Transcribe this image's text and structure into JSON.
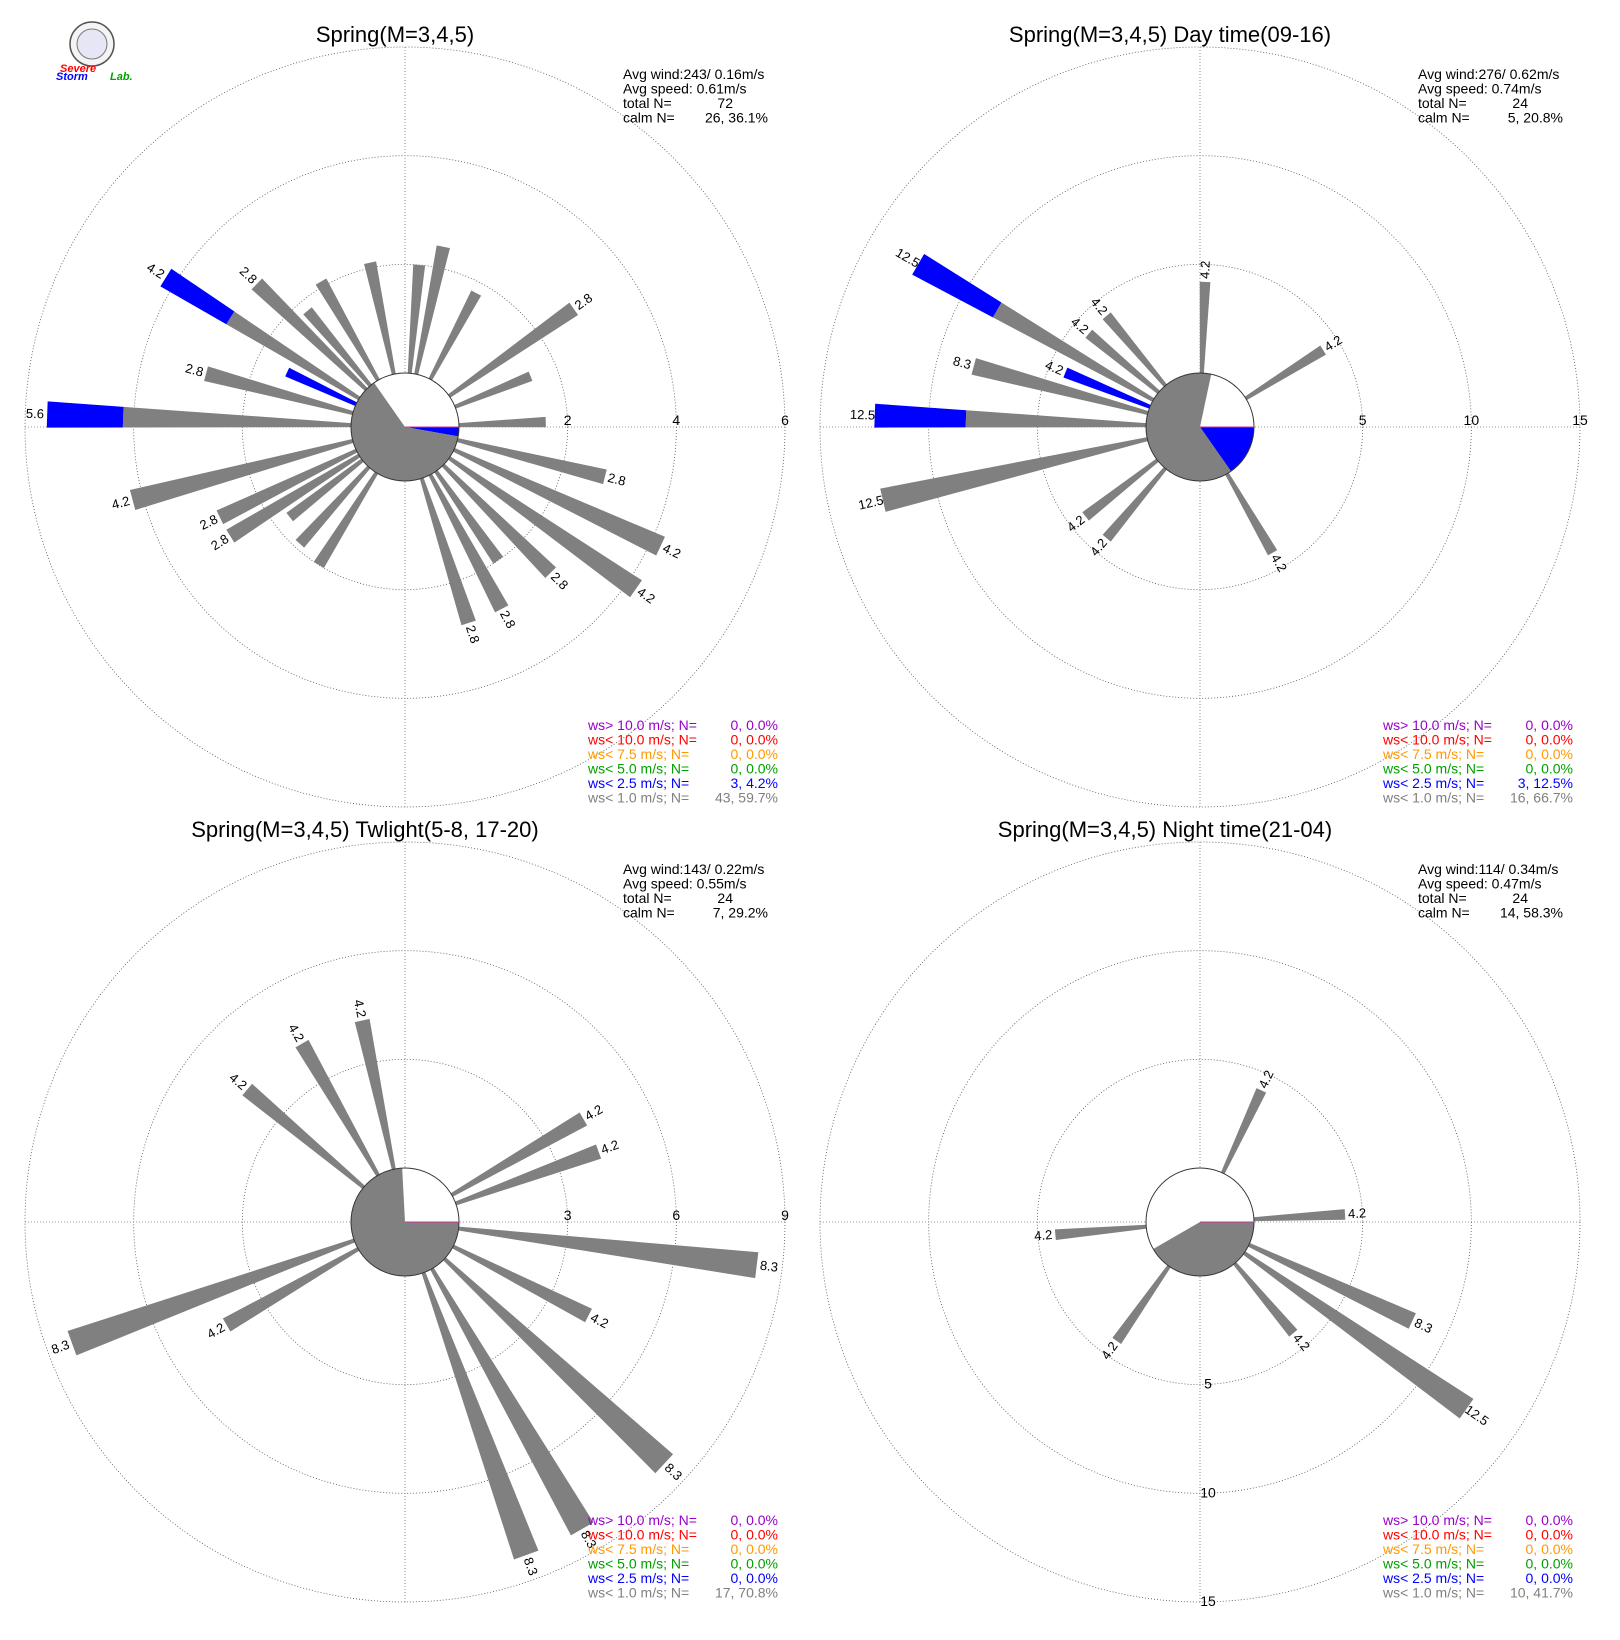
{
  "logo": {
    "text_line1": "Severe",
    "text_line2": "Storm",
    "text_line3": "Lab."
  },
  "colors": {
    "gray": "#808080",
    "blue": "#0000ff",
    "green": "#00a000",
    "orange": "#ff9900",
    "red": "#ff0000",
    "purple": "#9900cc"
  },
  "chart_data": [
    {
      "type": "wind-rose",
      "title": "Spring(M=3,4,5)",
      "avg_wind": "Avg wind:243/ 0.16m/s",
      "avg_speed": "Avg speed: 0.61m/s",
      "total_label": "total N=",
      "total_value": "72",
      "calm_label": "calm N=",
      "calm_value": "26,  36.1%",
      "rmax": 6,
      "ring_step": 2,
      "tick_labels": [
        "2",
        "4",
        "6"
      ],
      "tick_axis": "east",
      "calm_fraction": 0.361,
      "calm_segments": [
        {
          "from_deg": 90,
          "to_deg": 100,
          "color": "blue"
        },
        {
          "from_deg": 100,
          "to_deg": 325,
          "color": "gray"
        }
      ],
      "bars": [
        {
          "dir": 5,
          "value": 2.0,
          "segments": [
            [
              "gray",
              2.0
            ]
          ]
        },
        {
          "dir": 12,
          "value": 2.4,
          "segments": [
            [
              "gray",
              2.4
            ]
          ]
        },
        {
          "dir": 28,
          "value": 1.8,
          "segments": [
            [
              "gray",
              1.8
            ]
          ]
        },
        {
          "dir": 55,
          "value": 2.8,
          "label": "2.8",
          "segments": [
            [
              "gray",
              2.8
            ]
          ]
        },
        {
          "dir": 68,
          "value": 1.5,
          "segments": [
            [
              "gray",
              1.5
            ]
          ]
        },
        {
          "dir": 88,
          "value": 1.6,
          "segments": [
            [
              "gray",
              1.6
            ]
          ]
        },
        {
          "dir": 104,
          "value": 2.8,
          "label": "2.8",
          "segments": [
            [
              "gray",
              2.8
            ]
          ]
        },
        {
          "dir": 115,
          "value": 4.2,
          "label": "4.2",
          "segments": [
            [
              "gray",
              4.2
            ]
          ]
        },
        {
          "dir": 125,
          "value": 4.2,
          "label": "4.2",
          "segments": [
            [
              "gray",
              4.2
            ]
          ]
        },
        {
          "dir": 135,
          "value": 2.8,
          "label": "2.8",
          "segments": [
            [
              "gray",
              2.8
            ]
          ]
        },
        {
          "dir": 145,
          "value": 2.0,
          "segments": [
            [
              "gray",
              2.0
            ]
          ]
        },
        {
          "dir": 152,
          "value": 2.8,
          "label": "2.8",
          "segments": [
            [
              "gray",
              2.8
            ]
          ]
        },
        {
          "dir": 162,
          "value": 2.8,
          "label": "2.8",
          "segments": [
            [
              "gray",
              2.8
            ]
          ]
        },
        {
          "dir": 212,
          "value": 2.0,
          "segments": [
            [
              "gray",
              2.0
            ]
          ]
        },
        {
          "dir": 222,
          "value": 1.9,
          "segments": [
            [
              "gray",
              1.9
            ]
          ]
        },
        {
          "dir": 232,
          "value": 1.7,
          "segments": [
            [
              "gray",
              1.7
            ]
          ]
        },
        {
          "dir": 238,
          "value": 2.8,
          "label": "2.8",
          "segments": [
            [
              "gray",
              2.8
            ]
          ]
        },
        {
          "dir": 244,
          "value": 2.8,
          "label": "2.8",
          "segments": [
            [
              "gray",
              2.8
            ]
          ]
        },
        {
          "dir": 255,
          "value": 4.2,
          "label": "4.2",
          "segments": [
            [
              "gray",
              4.2
            ]
          ]
        },
        {
          "dir": 272,
          "value": 5.6,
          "label": "5.6",
          "segments": [
            [
              "gray",
              4.2
            ],
            [
              "blue",
              1.4
            ]
          ]
        },
        {
          "dir": 285,
          "value": 2.8,
          "label": "2.8",
          "segments": [
            [
              "gray",
              2.8
            ]
          ]
        },
        {
          "dir": 295,
          "value": 1.4,
          "segments": [
            [
              "blue",
              1.4
            ]
          ]
        },
        {
          "dir": 302,
          "value": 4.2,
          "label": "4.2",
          "segments": [
            [
              "gray",
              2.8
            ],
            [
              "blue",
              1.4
            ]
          ]
        },
        {
          "dir": 314,
          "value": 2.8,
          "label": "2.8",
          "segments": [
            [
              "gray",
              2.8
            ]
          ]
        },
        {
          "dir": 320,
          "value": 1.8,
          "segments": [
            [
              "gray",
              1.8
            ]
          ]
        },
        {
          "dir": 330,
          "value": 2.1,
          "segments": [
            [
              "gray",
              2.1
            ]
          ]
        },
        {
          "dir": 348,
          "value": 2.1,
          "segments": [
            [
              "gray",
              2.1
            ]
          ]
        }
      ],
      "legend": [
        {
          "prefix": "ws> 10.0 m/s; N=",
          "value": "0,  0.0%",
          "color": "purple"
        },
        {
          "prefix": "ws< 10.0 m/s; N=",
          "value": "0,  0.0%",
          "color": "red"
        },
        {
          "prefix": "ws<  7.5 m/s; N=",
          "value": "0,  0.0%",
          "color": "orange"
        },
        {
          "prefix": "ws<  5.0 m/s; N=",
          "value": "0,  0.0%",
          "color": "green"
        },
        {
          "prefix": "ws<  2.5 m/s; N=",
          "value": "3,  4.2%",
          "color": "blue"
        },
        {
          "prefix": "ws<  1.0 m/s; N=",
          "value": "43, 59.7%",
          "color": "gray"
        }
      ]
    },
    {
      "type": "wind-rose",
      "title": "Spring(M=3,4,5) Day time(09-16)",
      "avg_wind": "Avg wind:276/ 0.62m/s",
      "avg_speed": "Avg speed: 0.74m/s",
      "total_label": "total N=",
      "total_value": "24",
      "calm_label": "calm N=",
      "calm_value": "5,  20.8%",
      "rmax": 15,
      "ring_step": 5,
      "tick_labels": [
        "5",
        "10",
        "15"
      ],
      "tick_axis": "east",
      "calm_fraction": 0.208,
      "calm_segments": [
        {
          "from_deg": 90,
          "to_deg": 145,
          "color": "blue"
        },
        {
          "from_deg": 145,
          "to_deg": 372,
          "color": "gray"
        }
      ],
      "bars": [
        {
          "dir": 2,
          "value": 4.2,
          "label": "4.2",
          "segments": [
            [
              "gray",
              4.2
            ]
          ]
        },
        {
          "dir": 58,
          "value": 4.2,
          "label": "4.2",
          "segments": [
            [
              "gray",
              4.2
            ]
          ]
        },
        {
          "dir": 150,
          "value": 4.2,
          "label": "4.2",
          "segments": [
            [
              "gray",
              4.2
            ]
          ]
        },
        {
          "dir": 220,
          "value": 4.2,
          "label": "4.2",
          "segments": [
            [
              "gray",
              4.2
            ]
          ]
        },
        {
          "dir": 232,
          "value": 4.2,
          "label": "4.2",
          "segments": [
            [
              "gray",
              4.2
            ]
          ]
        },
        {
          "dir": 257,
          "value": 12.5,
          "label": "12.5",
          "segments": [
            [
              "gray",
              12.5
            ]
          ]
        },
        {
          "dir": 272,
          "value": 12.5,
          "label": "12.5",
          "segments": [
            [
              "gray",
              8.3
            ],
            [
              "blue",
              4.2
            ]
          ]
        },
        {
          "dir": 285,
          "value": 8.3,
          "label": "8.3",
          "segments": [
            [
              "gray",
              8.3
            ]
          ]
        },
        {
          "dir": 292,
          "value": 4.2,
          "label": "4.2",
          "segments": [
            [
              "blue",
              4.2
            ]
          ]
        },
        {
          "dir": 300,
          "value": 12.5,
          "label": "12.5",
          "segments": [
            [
              "gray",
              8.3
            ],
            [
              "blue",
              4.2
            ]
          ]
        },
        {
          "dir": 310,
          "value": 4.2,
          "label": "4.2",
          "segments": [
            [
              "gray",
              4.2
            ]
          ]
        },
        {
          "dir": 320,
          "value": 4.2,
          "label": "4.2",
          "segments": [
            [
              "gray",
              4.2
            ]
          ]
        }
      ],
      "legend": [
        {
          "prefix": "ws> 10.0 m/s; N=",
          "value": "0,  0.0%",
          "color": "purple"
        },
        {
          "prefix": "ws< 10.0 m/s; N=",
          "value": "0,  0.0%",
          "color": "red"
        },
        {
          "prefix": "ws<  7.5 m/s; N=",
          "value": "0,  0.0%",
          "color": "orange"
        },
        {
          "prefix": "ws<  5.0 m/s; N=",
          "value": "0,  0.0%",
          "color": "green"
        },
        {
          "prefix": "ws<  2.5 m/s; N=",
          "value": "3, 12.5%",
          "color": "blue"
        },
        {
          "prefix": "ws<  1.0 m/s; N=",
          "value": "16, 66.7%",
          "color": "gray"
        }
      ]
    },
    {
      "type": "wind-rose",
      "title": "Spring(M=3,4,5) Twlight(5-8, 17-20)",
      "avg_wind": "Avg wind:143/ 0.22m/s",
      "avg_speed": "Avg speed: 0.55m/s",
      "total_label": "total N=",
      "total_value": "24",
      "calm_label": "calm N=",
      "calm_value": "7,  29.2%",
      "rmax": 9,
      "ring_step": 3,
      "tick_labels": [
        "3",
        "6",
        "9"
      ],
      "tick_axis": "east",
      "calm_fraction": 0.292,
      "calm_segments": [
        {
          "from_deg": 90,
          "to_deg": 357,
          "color": "gray"
        }
      ],
      "bars": [
        {
          "dir": 60,
          "value": 4.2,
          "label": "4.2",
          "segments": [
            [
              "gray",
              4.2
            ]
          ]
        },
        {
          "dir": 70,
          "value": 4.2,
          "label": "4.2",
          "segments": [
            [
              "gray",
              4.2
            ]
          ]
        },
        {
          "dir": 97,
          "value": 8.3,
          "label": "8.3",
          "segments": [
            [
              "gray",
              8.3
            ]
          ]
        },
        {
          "dir": 117,
          "value": 4.2,
          "label": "4.2",
          "segments": [
            [
              "gray",
              4.2
            ]
          ]
        },
        {
          "dir": 133,
          "value": 8.3,
          "label": "8.3",
          "segments": [
            [
              "gray",
              8.3
            ]
          ]
        },
        {
          "dir": 150,
          "value": 8.3,
          "label": "8.3",
          "segments": [
            [
              "gray",
              8.3
            ]
          ]
        },
        {
          "dir": 160,
          "value": 8.3,
          "label": "8.3",
          "segments": [
            [
              "gray",
              8.3
            ]
          ]
        },
        {
          "dir": 240,
          "value": 4.2,
          "label": "4.2",
          "segments": [
            [
              "gray",
              4.2
            ]
          ]
        },
        {
          "dir": 250,
          "value": 8.3,
          "label": "8.3",
          "segments": [
            [
              "gray",
              8.3
            ]
          ]
        },
        {
          "dir": 310,
          "value": 4.2,
          "label": "4.2",
          "segments": [
            [
              "gray",
              4.2
            ]
          ]
        },
        {
          "dir": 330,
          "value": 4.2,
          "label": "4.2",
          "segments": [
            [
              "gray",
              4.2
            ]
          ]
        },
        {
          "dir": 348,
          "value": 4.2,
          "label": "4.2",
          "segments": [
            [
              "gray",
              4.2
            ]
          ]
        }
      ],
      "legend": [
        {
          "prefix": "ws> 10.0 m/s; N=",
          "value": "0,  0.0%",
          "color": "purple"
        },
        {
          "prefix": "ws< 10.0 m/s; N=",
          "value": "0,  0.0%",
          "color": "red"
        },
        {
          "prefix": "ws<  7.5 m/s; N=",
          "value": "0,  0.0%",
          "color": "orange"
        },
        {
          "prefix": "ws<  5.0 m/s; N=",
          "value": "0,  0.0%",
          "color": "green"
        },
        {
          "prefix": "ws<  2.5 m/s; N=",
          "value": "0,  0.0%",
          "color": "blue"
        },
        {
          "prefix": "ws<  1.0 m/s; N=",
          "value": "17, 70.8%",
          "color": "gray"
        }
      ]
    },
    {
      "type": "wind-rose",
      "title": "Spring(M=3,4,5) Night time(21-04)",
      "avg_wind": "Avg wind:114/ 0.34m/s",
      "avg_speed": "Avg speed: 0.47m/s",
      "total_label": "total N=",
      "total_value": "24",
      "calm_label": "calm N=",
      "calm_value": "14,  58.3%",
      "rmax": 15,
      "ring_step": 5,
      "tick_labels": [
        "5",
        "10",
        "15"
      ],
      "tick_axis": "south",
      "calm_fraction": 0.583,
      "calm_segments": [
        {
          "from_deg": 90,
          "to_deg": 240,
          "color": "gray"
        }
      ],
      "bars": [
        {
          "dir": 25,
          "value": 4.2,
          "label": "4.2",
          "segments": [
            [
              "gray",
              4.2
            ]
          ]
        },
        {
          "dir": 87,
          "value": 4.2,
          "label": "4.2",
          "segments": [
            [
              "gray",
              4.2
            ]
          ]
        },
        {
          "dir": 115,
          "value": 8.3,
          "label": "8.3",
          "segments": [
            [
              "gray",
              8.3
            ]
          ]
        },
        {
          "dir": 125,
          "value": 12.5,
          "label": "12.5",
          "segments": [
            [
              "gray",
              12.5
            ]
          ]
        },
        {
          "dir": 140,
          "value": 4.2,
          "label": "4.2",
          "segments": [
            [
              "gray",
              4.2
            ]
          ]
        },
        {
          "dir": 215,
          "value": 4.2,
          "label": "4.2",
          "segments": [
            [
              "gray",
              4.2
            ]
          ]
        },
        {
          "dir": 265,
          "value": 4.2,
          "label": "4.2",
          "segments": [
            [
              "gray",
              4.2
            ]
          ]
        }
      ],
      "legend": [
        {
          "prefix": "ws> 10.0 m/s; N=",
          "value": "0,  0.0%",
          "color": "purple"
        },
        {
          "prefix": "ws< 10.0 m/s; N=",
          "value": "0,  0.0%",
          "color": "red"
        },
        {
          "prefix": "ws<  7.5 m/s; N=",
          "value": "0,  0.0%",
          "color": "orange"
        },
        {
          "prefix": "ws<  5.0 m/s; N=",
          "value": "0,  0.0%",
          "color": "green"
        },
        {
          "prefix": "ws<  2.5 m/s; N=",
          "value": "0,  0.0%",
          "color": "blue"
        },
        {
          "prefix": "ws<  1.0 m/s; N=",
          "value": "10, 41.7%",
          "color": "gray"
        }
      ]
    }
  ]
}
